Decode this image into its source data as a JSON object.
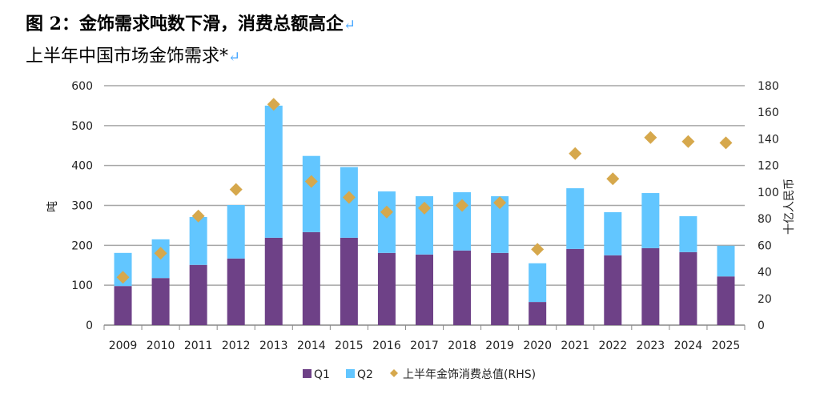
{
  "header": {
    "title": "图 2：金饰需求吨数下滑，消费总额高企",
    "subtitle": "上半年中国市场金饰需求*",
    "return_mark": "↵"
  },
  "colors": {
    "q1": "#6E4187",
    "q2": "#62C6FF",
    "rhs": "#D6A84C",
    "grid": "#a6a6a6"
  },
  "chart_data": {
    "type": "bar",
    "title": "上半年中国市场金饰需求*",
    "categories": [
      "2009",
      "2010",
      "2011",
      "2012",
      "2013",
      "2014",
      "2015",
      "2016",
      "2017",
      "2018",
      "2019",
      "2020",
      "2021",
      "2022",
      "2023",
      "2024",
      "2025"
    ],
    "series": [
      {
        "name": "Q1",
        "type": "bar",
        "stack": "a",
        "values": [
          98,
          118,
          151,
          167,
          219,
          233,
          219,
          181,
          177,
          187,
          181,
          58,
          191,
          175,
          193,
          183,
          122
        ]
      },
      {
        "name": "Q2",
        "type": "bar",
        "stack": "a",
        "values": [
          83,
          97,
          120,
          134,
          331,
          191,
          177,
          154,
          146,
          146,
          142,
          97,
          152,
          108,
          138,
          90,
          77
        ]
      },
      {
        "name": "上半年金饰消费总值(RHS)",
        "type": "scatter",
        "axis": "right",
        "values": [
          36,
          54,
          82,
          102,
          166,
          108,
          96,
          85,
          88,
          90,
          92,
          57,
          129,
          110,
          141,
          138,
          137
        ]
      }
    ],
    "ylabel": "吨",
    "ylabel_right": "十亿人民币",
    "ylim": [
      0,
      600
    ],
    "ylim_right": [
      0,
      180
    ],
    "yticks": [
      "0",
      "100",
      "200",
      "300",
      "400",
      "500",
      "600"
    ],
    "yticks_right": [
      "0",
      "20",
      "40",
      "60",
      "80",
      "100",
      "120",
      "140",
      "160",
      "180"
    ],
    "grid": true,
    "legend": "bottom"
  }
}
